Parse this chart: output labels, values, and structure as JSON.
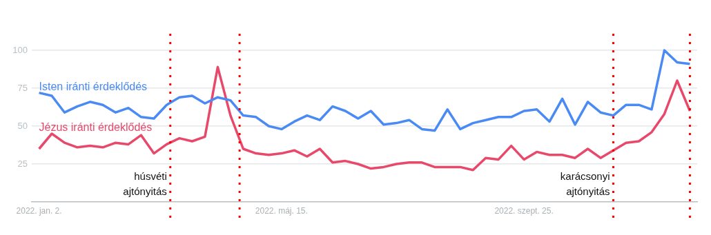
{
  "chart_data": {
    "type": "line",
    "x": [
      "2022-01-02",
      "2022-01-09",
      "2022-01-16",
      "2022-01-23",
      "2022-01-30",
      "2022-02-06",
      "2022-02-13",
      "2022-02-20",
      "2022-02-27",
      "2022-03-06",
      "2022-03-13",
      "2022-03-20",
      "2022-03-27",
      "2022-04-03",
      "2022-04-10",
      "2022-04-17",
      "2022-04-24",
      "2022-05-01",
      "2022-05-08",
      "2022-05-15",
      "2022-05-22",
      "2022-05-29",
      "2022-06-05",
      "2022-06-12",
      "2022-06-19",
      "2022-06-26",
      "2022-07-03",
      "2022-07-10",
      "2022-07-17",
      "2022-07-24",
      "2022-07-31",
      "2022-08-07",
      "2022-08-14",
      "2022-08-21",
      "2022-08-28",
      "2022-09-04",
      "2022-09-11",
      "2022-09-18",
      "2022-09-25",
      "2022-10-02",
      "2022-10-09",
      "2022-10-16",
      "2022-10-23",
      "2022-10-30",
      "2022-11-06",
      "2022-11-13",
      "2022-11-20",
      "2022-11-27",
      "2022-12-04",
      "2022-12-11",
      "2022-12-18",
      "2022-12-25"
    ],
    "series": [
      {
        "name": "Isten iránti érdeklődés",
        "color": "#4a8af4",
        "values": [
          72,
          70,
          59,
          63,
          66,
          64,
          59,
          62,
          56,
          55,
          64,
          69,
          70,
          65,
          69,
          67,
          57,
          56,
          50,
          48,
          53,
          57,
          54,
          63,
          60,
          55,
          60,
          51,
          52,
          54,
          48,
          47,
          61,
          48,
          52,
          54,
          56,
          56,
          60,
          61,
          53,
          68,
          51,
          66,
          59,
          57,
          64,
          64,
          61,
          100,
          92,
          91
        ]
      },
      {
        "name": "Jézus iránti érdeklődés",
        "color": "#e8496a",
        "values": [
          35,
          45,
          39,
          36,
          37,
          36,
          39,
          38,
          44,
          32,
          38,
          42,
          40,
          43,
          89,
          57,
          35,
          32,
          31,
          32,
          34,
          30,
          35,
          26,
          27,
          25,
          22,
          23,
          25,
          26,
          26,
          23,
          23,
          23,
          21,
          29,
          28,
          37,
          28,
          33,
          31,
          31,
          29,
          35,
          29,
          34,
          39,
          40,
          46,
          58,
          80,
          60
        ]
      }
    ],
    "xlim": [
      "2021-12-29",
      "2022-12-29"
    ],
    "xticks": [
      {
        "value": "2022-01-02",
        "label": "2022. jan. 2."
      },
      {
        "value": "2022-05-15",
        "label": "2022. máj. 15."
      },
      {
        "value": "2022-09-25",
        "label": "2022. szept. 25."
      }
    ],
    "ylim": [
      0,
      110
    ],
    "yticks": [
      25,
      50,
      75,
      100
    ],
    "grid": "y",
    "ref_lines": [
      {
        "axis": "x",
        "value": "2022-03-15",
        "label": "húsvéti ajtónyitás",
        "color": "#ff0000",
        "line_style": "dotted"
      },
      {
        "axis": "x",
        "value": "2022-04-22",
        "color": "#ff0000",
        "line_style": "dotted"
      },
      {
        "axis": "x",
        "value": "2022-11-13",
        "label": "karácsonyi ajtónyitás",
        "color": "#ff0000",
        "line_style": "dotted"
      },
      {
        "axis": "x",
        "value": "2022-12-25",
        "color": "#ff0000",
        "line_style": "dotted"
      }
    ]
  }
}
